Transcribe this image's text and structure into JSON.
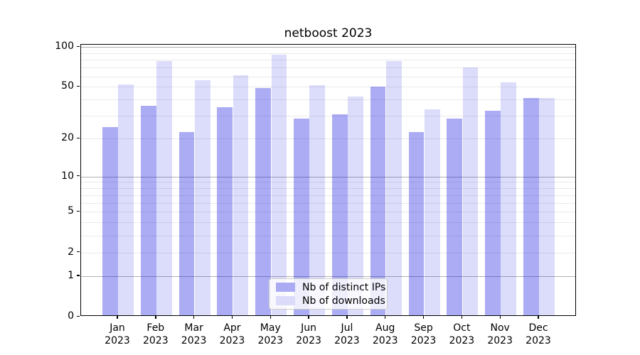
{
  "chart_data": {
    "type": "bar",
    "title": "netboost 2023",
    "categories": [
      "Jan",
      "Feb",
      "Mar",
      "Apr",
      "May",
      "Jun",
      "Jul",
      "Aug",
      "Sep",
      "Oct",
      "Nov",
      "Dec"
    ],
    "year_suffix": "2023",
    "series": [
      {
        "name": "Nb of distinct IPs",
        "values": [
          24,
          35,
          22,
          34,
          48,
          28,
          30,
          49,
          22,
          28,
          32,
          40
        ],
        "color": "rgba(16,16,224,0.35)",
        "color_solid": "#ababf4"
      },
      {
        "name": "Nb of downloads",
        "values": [
          51,
          76,
          55,
          60,
          85,
          50,
          41,
          76,
          33,
          68,
          53,
          40
        ],
        "color": "rgba(16,16,224,0.145)",
        "color_solid": "#dcdcfa"
      }
    ],
    "yscale": "log1p",
    "ylim": [
      0,
      104
    ],
    "ytick_values": [
      0,
      1,
      2,
      5,
      10,
      20,
      50,
      100
    ],
    "ytick_labels": [
      "0",
      "1",
      "2",
      "5",
      "10",
      "20",
      "50",
      "100"
    ],
    "major_grid_values": [
      1,
      10,
      100
    ],
    "minor_grid_values": [
      2,
      3,
      4,
      5,
      6,
      7,
      8,
      9,
      20,
      30,
      40,
      50,
      60,
      70,
      80,
      90
    ],
    "grid_major_color": "#b0b0b0",
    "grid_minor_color": "#e9e9e9",
    "legend_position": "lower center",
    "legend_entries": [
      "Nb of distinct IPs",
      "Nb of downloads"
    ]
  }
}
